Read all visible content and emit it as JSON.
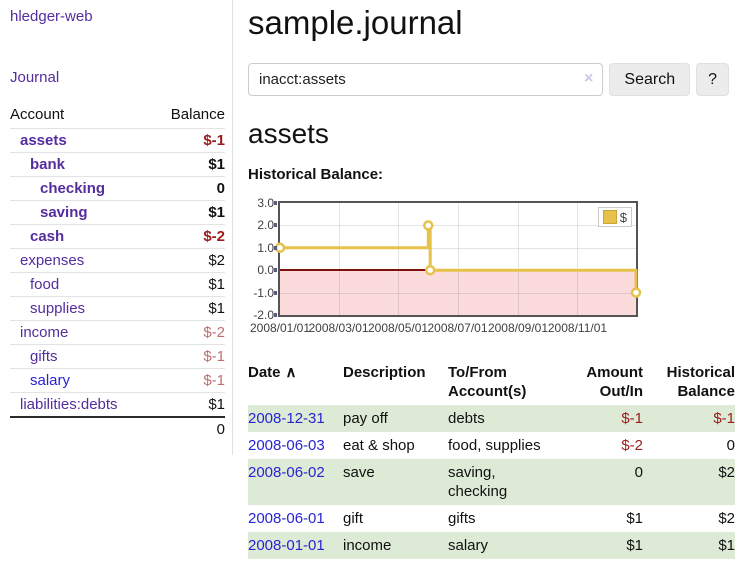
{
  "app": {
    "title": "hledger-web",
    "nav": "Journal"
  },
  "sidebar": {
    "account_header": "Account",
    "balance_header": "Balance",
    "accounts": [
      {
        "name": "assets",
        "indent": 0,
        "bold": true,
        "link_color": "purple",
        "balance": "$-1",
        "balance_tone": "neg"
      },
      {
        "name": "bank",
        "indent": 1,
        "bold": true,
        "link_color": "purple",
        "balance": "$1",
        "balance_tone": "pos"
      },
      {
        "name": "checking",
        "indent": 2,
        "bold": true,
        "link_color": "purple",
        "balance": "0",
        "balance_tone": "pos"
      },
      {
        "name": "saving",
        "indent": 2,
        "bold": true,
        "link_color": "purple",
        "balance": "$1",
        "balance_tone": "pos"
      },
      {
        "name": "cash",
        "indent": 1,
        "bold": true,
        "link_color": "purple",
        "balance": "$-2",
        "balance_tone": "neg"
      },
      {
        "name": "expenses",
        "indent": 0,
        "bold": false,
        "link_color": "purple",
        "balance": "$2",
        "balance_tone": "pos"
      },
      {
        "name": "food",
        "indent": 1,
        "bold": false,
        "link_color": "purple",
        "balance": "$1",
        "balance_tone": "pos"
      },
      {
        "name": "supplies",
        "indent": 1,
        "bold": false,
        "link_color": "purple",
        "balance": "$1",
        "balance_tone": "pos"
      },
      {
        "name": "income",
        "indent": 0,
        "bold": false,
        "link_color": "purple",
        "balance": "$-2",
        "balance_tone": "neg-soft"
      },
      {
        "name": "gifts",
        "indent": 1,
        "bold": false,
        "link_color": "purple",
        "balance": "$-1",
        "balance_tone": "neg-soft"
      },
      {
        "name": "salary",
        "indent": 1,
        "bold": false,
        "link_color": "blue",
        "balance": "$-1",
        "balance_tone": "neg-soft"
      },
      {
        "name": "liabilities:debts",
        "indent": 0,
        "bold": false,
        "link_color": "purple",
        "balance": "$1",
        "balance_tone": "pos"
      }
    ],
    "total": "0"
  },
  "main": {
    "title": "sample.journal",
    "search": {
      "value": "inacct:assets",
      "clear_icon": "×",
      "button": "Search",
      "help": "?"
    },
    "account_title": "assets",
    "chart_title": "Historical Balance:"
  },
  "chart_data": {
    "type": "line",
    "step": true,
    "title": "Historical Balance:",
    "series": [
      {
        "name": "$",
        "color": "#e7c24b",
        "points": [
          [
            "2008-01-01",
            1
          ],
          [
            "2008-06-01",
            2
          ],
          [
            "2008-06-02",
            2
          ],
          [
            "2008-06-03",
            0
          ],
          [
            "2008-12-31",
            -1
          ]
        ]
      }
    ],
    "xlim": [
      "2008-01-01",
      "2008-12-31"
    ],
    "ylim": [
      -2,
      3
    ],
    "x_ticks": [
      "2008/01/01",
      "2008/03/01",
      "2008/05/01",
      "2008/07/01",
      "2008/09/01",
      "2008/11/01"
    ],
    "y_ticks": [
      "3.0",
      "2.0",
      "1.0",
      "0.0",
      "-1.0",
      "-2.0"
    ],
    "grid": true,
    "legend_position": "top-right",
    "negative_region_color": "#fbdbdb",
    "zero_line_color": "#7d0f0f"
  },
  "register": {
    "headers": [
      "Date",
      "Description",
      "To/From Account(s)",
      "Amount Out/In",
      "Historical Balance"
    ],
    "sort_arrow": "∧",
    "rows": [
      {
        "date": "2008-12-31",
        "description": "pay off",
        "accounts": "debts",
        "amount": "$-1",
        "amount_negative": true,
        "balance": "$-1",
        "balance_negative": true
      },
      {
        "date": "2008-06-03",
        "description": "eat & shop",
        "accounts": "food, supplies",
        "amount": "$-2",
        "amount_negative": true,
        "balance": "0",
        "balance_negative": false
      },
      {
        "date": "2008-06-02",
        "description": "save",
        "accounts": "saving,\nchecking",
        "amount": "0",
        "amount_negative": false,
        "balance": "$2",
        "balance_negative": false
      },
      {
        "date": "2008-06-01",
        "description": "gift",
        "accounts": "gifts",
        "amount": "$1",
        "amount_negative": false,
        "balance": "$2",
        "balance_negative": false
      },
      {
        "date": "2008-01-01",
        "description": "income",
        "accounts": "salary",
        "amount": "$1",
        "amount_negative": false,
        "balance": "$1",
        "balance_negative": false
      }
    ]
  }
}
